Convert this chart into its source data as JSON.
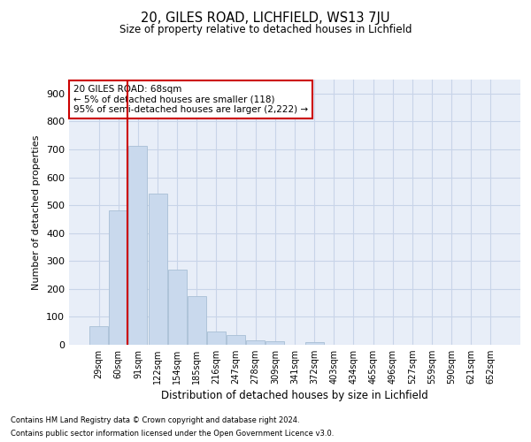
{
  "title_line1": "20, GILES ROAD, LICHFIELD, WS13 7JU",
  "title_line2": "Size of property relative to detached houses in Lichfield",
  "xlabel": "Distribution of detached houses by size in Lichfield",
  "ylabel": "Number of detached properties",
  "categories": [
    "29sqm",
    "60sqm",
    "91sqm",
    "122sqm",
    "154sqm",
    "185sqm",
    "216sqm",
    "247sqm",
    "278sqm",
    "309sqm",
    "341sqm",
    "372sqm",
    "403sqm",
    "434sqm",
    "465sqm",
    "496sqm",
    "527sqm",
    "559sqm",
    "590sqm",
    "621sqm",
    "652sqm"
  ],
  "values": [
    65,
    480,
    713,
    540,
    270,
    175,
    47,
    35,
    17,
    13,
    0,
    8,
    0,
    0,
    0,
    0,
    0,
    0,
    0,
    0,
    0
  ],
  "bar_color": "#c9d9ed",
  "bar_edge_color": "#a8bfd5",
  "annotation_text": "20 GILES ROAD: 68sqm\n← 5% of detached houses are smaller (118)\n95% of semi-detached houses are larger (2,222) →",
  "annotation_box_color": "#ffffff",
  "annotation_box_edge_color": "#cc0000",
  "red_line_color": "#cc0000",
  "grid_color": "#c8d4e8",
  "plot_bg_color": "#e8eef8",
  "ylim": [
    0,
    950
  ],
  "yticks": [
    0,
    100,
    200,
    300,
    400,
    500,
    600,
    700,
    800,
    900
  ],
  "footnote_line1": "Contains HM Land Registry data © Crown copyright and database right 2024.",
  "footnote_line2": "Contains public sector information licensed under the Open Government Licence v3.0."
}
